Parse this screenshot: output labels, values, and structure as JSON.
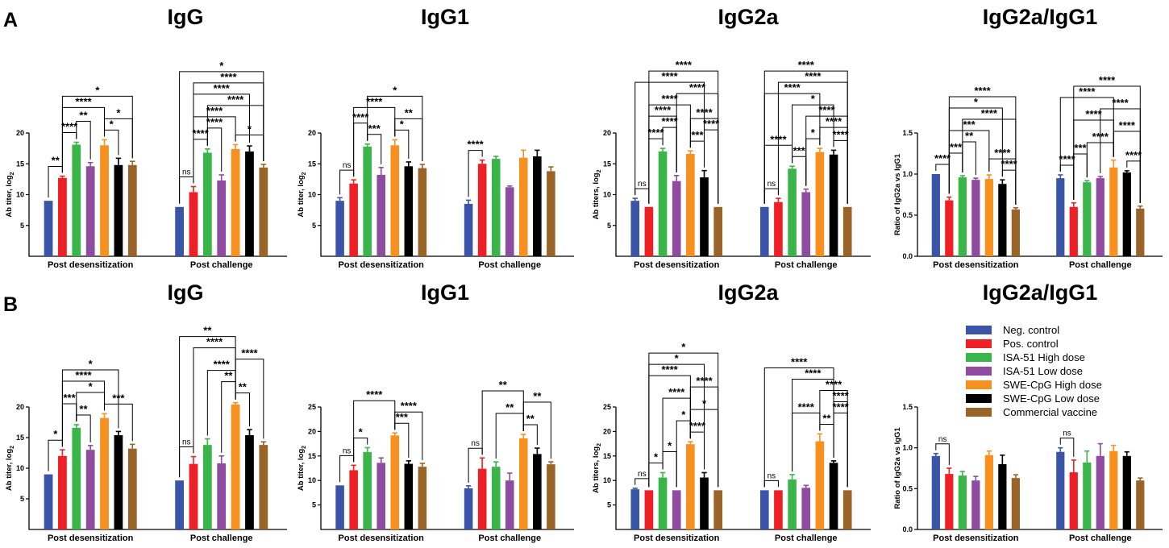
{
  "panels": [
    {
      "label": "A"
    },
    {
      "label": "B"
    }
  ],
  "legend": [
    {
      "name": "Neg. control",
      "color": "#3a55a8"
    },
    {
      "name": "Pos. control",
      "color": "#ee1f25"
    },
    {
      "name": "ISA-51 High dose",
      "color": "#39b54a"
    },
    {
      "name": "ISA-51 Low dose",
      "color": "#8e4b9f"
    },
    {
      "name": "SWE-CpG High dose",
      "color": "#f7901e"
    },
    {
      "name": "SWE-CpG Low dose",
      "color": "#000000"
    },
    {
      "name": "Commercial vaccine",
      "color": "#9a6328"
    }
  ],
  "chart_data": [
    {
      "panel": "A",
      "type": "bar",
      "title": "IgG",
      "ylabel": "Ab titer, log",
      "ylabel_sub": "2",
      "ylim": [
        0,
        20
      ],
      "yticks": [
        5,
        10,
        15,
        20
      ],
      "categories": [
        "Post desensitization",
        "Post challenge"
      ],
      "values": [
        [
          9,
          12.7,
          18.1,
          14.6,
          18,
          14.8,
          14.8
        ],
        [
          8,
          10.4,
          16.8,
          12.3,
          17.4,
          17,
          14.4
        ]
      ],
      "errors": [
        [
          0,
          0.3,
          0.4,
          0.6,
          0.9,
          1.1,
          0.6
        ],
        [
          0,
          0.9,
          0.6,
          0.9,
          0.7,
          0.9,
          0.5
        ]
      ],
      "brackets": [
        {
          "g": 0,
          "a": 0,
          "b": 1,
          "label": "**"
        },
        {
          "g": 0,
          "a": 1,
          "b": 2,
          "label": "****"
        },
        {
          "g": 0,
          "a": 2,
          "b": 3,
          "label": "**"
        },
        {
          "g": 0,
          "a": 1,
          "b": 4,
          "label": "****"
        },
        {
          "g": 0,
          "a": 4,
          "b": 5,
          "label": "*"
        },
        {
          "g": 0,
          "a": 4,
          "b": 6,
          "label": "*"
        },
        {
          "g": 0,
          "a": 1,
          "b": 6,
          "label": "*"
        },
        {
          "g": 1,
          "a": 0,
          "b": 1,
          "label": "ns"
        },
        {
          "g": 1,
          "a": 1,
          "b": 2,
          "label": "****"
        },
        {
          "g": 1,
          "a": 2,
          "b": 3,
          "label": "****"
        },
        {
          "g": 1,
          "a": 1,
          "b": 4,
          "label": "****"
        },
        {
          "g": 1,
          "a": 4,
          "b": 6,
          "label": "*"
        },
        {
          "g": 1,
          "a": 2,
          "b": 6,
          "label": "****"
        },
        {
          "g": 1,
          "a": 1,
          "b": 5,
          "label": "****"
        },
        {
          "g": 1,
          "a": 1,
          "b": 6,
          "label": "****"
        },
        {
          "g": 1,
          "a": 0,
          "b": 6,
          "label": "*"
        }
      ]
    },
    {
      "panel": "A",
      "type": "bar",
      "title": "IgG1",
      "ylabel": "Ab titer, log",
      "ylabel_sub": "2",
      "ylim": [
        0,
        20
      ],
      "yticks": [
        5,
        10,
        15,
        20
      ],
      "categories": [
        "Post desensitization",
        "Post challenge"
      ],
      "values": [
        [
          9,
          11.8,
          17.8,
          13.2,
          18,
          14.6,
          14.3
        ],
        [
          8.5,
          15,
          15.8,
          11.2,
          16,
          16.2,
          13.8
        ]
      ],
      "errors": [
        [
          0.5,
          0.6,
          0.4,
          1.2,
          0.9,
          0.7,
          0.6
        ],
        [
          0.6,
          0.6,
          0.4,
          0.2,
          1.2,
          1,
          0.7
        ]
      ],
      "brackets": [
        {
          "g": 0,
          "a": 0,
          "b": 1,
          "label": "ns"
        },
        {
          "g": 0,
          "a": 2,
          "b": 3,
          "label": "***"
        },
        {
          "g": 0,
          "a": 1,
          "b": 2,
          "label": "****"
        },
        {
          "g": 0,
          "a": 4,
          "b": 5,
          "label": "*"
        },
        {
          "g": 0,
          "a": 4,
          "b": 6,
          "label": "**"
        },
        {
          "g": 0,
          "a": 1,
          "b": 4,
          "label": "****"
        },
        {
          "g": 0,
          "a": 2,
          "b": 6,
          "label": "*"
        },
        {
          "g": 1,
          "a": 0,
          "b": 1,
          "label": "****"
        }
      ]
    },
    {
      "panel": "A",
      "type": "bar",
      "title": "IgG2a",
      "ylabel": "Ab titers, log",
      "ylabel_sub": "2",
      "ylim": [
        0,
        20
      ],
      "yticks": [
        5,
        10,
        15,
        20
      ],
      "categories": [
        "Post desensitization",
        "Post challenge"
      ],
      "values": [
        [
          9,
          8,
          17,
          12.2,
          16.6,
          12.8,
          8
        ],
        [
          8,
          8.8,
          14.2,
          10.4,
          16.9,
          16.5,
          8
        ]
      ],
      "errors": [
        [
          0.4,
          0,
          0.5,
          0.9,
          0.5,
          1.1,
          0
        ],
        [
          0,
          0.6,
          0.4,
          0.5,
          0.6,
          0.7,
          0
        ]
      ],
      "brackets": [
        {
          "g": 0,
          "a": 0,
          "b": 1,
          "label": "ns"
        },
        {
          "g": 0,
          "a": 1,
          "b": 2,
          "label": "****"
        },
        {
          "g": 0,
          "a": 2,
          "b": 3,
          "label": "****"
        },
        {
          "g": 0,
          "a": 4,
          "b": 5,
          "label": "***"
        },
        {
          "g": 0,
          "a": 5,
          "b": 6,
          "label": "****"
        },
        {
          "g": 0,
          "a": 1,
          "b": 3,
          "label": "****"
        },
        {
          "g": 0,
          "a": 4,
          "b": 6,
          "label": "****"
        },
        {
          "g": 0,
          "a": 1,
          "b": 4,
          "label": "****"
        },
        {
          "g": 0,
          "a": 3,
          "b": 6,
          "label": "****"
        },
        {
          "g": 0,
          "a": 0,
          "b": 5,
          "label": "****"
        },
        {
          "g": 0,
          "a": 1,
          "b": 6,
          "label": "****"
        },
        {
          "g": 1,
          "a": 0,
          "b": 1,
          "label": "ns"
        },
        {
          "g": 1,
          "a": 0,
          "b": 2,
          "label": "****"
        },
        {
          "g": 1,
          "a": 2,
          "b": 3,
          "label": "***"
        },
        {
          "g": 1,
          "a": 3,
          "b": 4,
          "label": "*"
        },
        {
          "g": 1,
          "a": 5,
          "b": 6,
          "label": "****"
        },
        {
          "g": 1,
          "a": 3,
          "b": 6,
          "label": "****"
        },
        {
          "g": 1,
          "a": 4,
          "b": 6,
          "label": "****"
        },
        {
          "g": 1,
          "a": 2,
          "b": 5,
          "label": "*"
        },
        {
          "g": 1,
          "a": 0,
          "b": 4,
          "label": "****"
        },
        {
          "g": 1,
          "a": 1,
          "b": 6,
          "label": "****"
        },
        {
          "g": 1,
          "a": 0,
          "b": 6,
          "label": "****"
        }
      ]
    },
    {
      "panel": "A",
      "type": "bar",
      "title": "IgG2a/IgG1",
      "ylabel": "Ratio of IgG2a vs IgG1",
      "ylim": [
        0,
        1.5
      ],
      "yticks": [
        0.0,
        0.5,
        1.0,
        1.5
      ],
      "categories": [
        "Post desensitization",
        "Post challenge"
      ],
      "values": [
        [
          1,
          0.68,
          0.96,
          0.93,
          0.94,
          0.88,
          0.57
        ],
        [
          0.95,
          0.6,
          0.9,
          0.95,
          1.08,
          1.02,
          0.58
        ]
      ],
      "errors": [
        [
          0,
          0.04,
          0.02,
          0.02,
          0.05,
          0.05,
          0.02
        ],
        [
          0.04,
          0.05,
          0.02,
          0.02,
          0.09,
          0.02,
          0.03
        ]
      ],
      "brackets": [
        {
          "g": 0,
          "a": 0,
          "b": 1,
          "label": "****"
        },
        {
          "g": 0,
          "a": 1,
          "b": 2,
          "label": "***"
        },
        {
          "g": 0,
          "a": 2,
          "b": 3,
          "label": "**"
        },
        {
          "g": 0,
          "a": 5,
          "b": 6,
          "label": "****"
        },
        {
          "g": 0,
          "a": 4,
          "b": 6,
          "label": "****"
        },
        {
          "g": 0,
          "a": 2,
          "b": 6,
          "label": "****"
        },
        {
          "g": 0,
          "a": 1,
          "b": 4,
          "label": "***"
        },
        {
          "g": 0,
          "a": 1,
          "b": 5,
          "label": "*"
        },
        {
          "g": 0,
          "a": 1,
          "b": 6,
          "label": "****"
        },
        {
          "g": 1,
          "a": 0,
          "b": 1,
          "label": "****"
        },
        {
          "g": 1,
          "a": 1,
          "b": 2,
          "label": "***"
        },
        {
          "g": 1,
          "a": 2,
          "b": 4,
          "label": "****"
        },
        {
          "g": 1,
          "a": 5,
          "b": 6,
          "label": "****"
        },
        {
          "g": 1,
          "a": 4,
          "b": 6,
          "label": "****"
        },
        {
          "g": 1,
          "a": 1,
          "b": 4,
          "label": "****"
        },
        {
          "g": 1,
          "a": 3,
          "b": 6,
          "label": "****"
        },
        {
          "g": 1,
          "a": 1,
          "b": 6,
          "label": "****"
        },
        {
          "g": 1,
          "a": 0,
          "b": 4,
          "label": "****"
        }
      ]
    },
    {
      "panel": "B",
      "type": "bar",
      "title": "IgG",
      "ylabel": "Ab titer, log",
      "ylabel_sub": "2",
      "ylim": [
        0,
        20
      ],
      "yticks": [
        5,
        10,
        15,
        20
      ],
      "categories": [
        "Post desensitization",
        "Post challenge"
      ],
      "values": [
        [
          9,
          12,
          16.6,
          13,
          18.2,
          15.4,
          13.2
        ],
        [
          8,
          10.7,
          13.8,
          10.8,
          20.4,
          15.4,
          13.8
        ]
      ],
      "errors": [
        [
          0,
          1,
          0.5,
          0.7,
          0.7,
          0.6,
          0.7
        ],
        [
          0,
          1.2,
          1,
          1.2,
          0.3,
          0.9,
          0.5
        ]
      ],
      "brackets": [
        {
          "g": 0,
          "a": 0,
          "b": 1,
          "label": "*"
        },
        {
          "g": 0,
          "a": 2,
          "b": 3,
          "label": "**"
        },
        {
          "g": 0,
          "a": 4,
          "b": 6,
          "label": "***"
        },
        {
          "g": 0,
          "a": 1,
          "b": 2,
          "label": "***"
        },
        {
          "g": 0,
          "a": 2,
          "b": 4,
          "label": "*"
        },
        {
          "g": 0,
          "a": 1,
          "b": 4,
          "label": "****"
        },
        {
          "g": 0,
          "a": 1,
          "b": 5,
          "label": "*"
        },
        {
          "g": 1,
          "a": 0,
          "b": 1,
          "label": "ns"
        },
        {
          "g": 1,
          "a": 4,
          "b": 5,
          "label": "**"
        },
        {
          "g": 1,
          "a": 1,
          "b": 4,
          "label": "****"
        },
        {
          "g": 1,
          "a": 2,
          "b": 4,
          "label": "****"
        },
        {
          "g": 1,
          "a": 4,
          "b": 6,
          "label": "****"
        },
        {
          "g": 1,
          "a": 3,
          "b": 4,
          "label": "**"
        },
        {
          "g": 1,
          "a": 0,
          "b": 4,
          "label": "**"
        }
      ]
    },
    {
      "panel": "B",
      "type": "bar",
      "title": "IgG1",
      "ylabel": "Ab titer, log",
      "ylabel_sub": "2",
      "ylim": [
        0,
        25
      ],
      "yticks": [
        5,
        10,
        15,
        20,
        25
      ],
      "categories": [
        "Post desensitization",
        "Post challenge"
      ],
      "values": [
        [
          9,
          12.1,
          15.8,
          13.6,
          19.2,
          13.4,
          12.8
        ],
        [
          8.4,
          12.4,
          12.8,
          10,
          18.6,
          15.4,
          13.3
        ]
      ],
      "errors": [
        [
          0,
          1,
          0.9,
          1,
          0.5,
          0.6,
          0.7
        ],
        [
          0.5,
          2.2,
          1,
          1.5,
          0.8,
          1.2,
          0.5
        ]
      ],
      "brackets": [
        {
          "g": 0,
          "a": 0,
          "b": 1,
          "label": "ns"
        },
        {
          "g": 0,
          "a": 1,
          "b": 2,
          "label": "*"
        },
        {
          "g": 0,
          "a": 4,
          "b": 5,
          "label": "***"
        },
        {
          "g": 0,
          "a": 1,
          "b": 4,
          "label": "****"
        },
        {
          "g": 0,
          "a": 4,
          "b": 6,
          "label": "****"
        },
        {
          "g": 1,
          "a": 0,
          "b": 1,
          "label": "ns"
        },
        {
          "g": 1,
          "a": 2,
          "b": 4,
          "label": "**"
        },
        {
          "g": 1,
          "a": 4,
          "b": 6,
          "label": "**"
        },
        {
          "g": 1,
          "a": 4,
          "b": 5,
          "label": "**"
        },
        {
          "g": 1,
          "a": 1,
          "b": 4,
          "label": "**"
        }
      ]
    },
    {
      "panel": "B",
      "type": "bar",
      "title": "IgG2a",
      "ylabel": "Ab titers, log",
      "ylabel_sub": "2",
      "ylim": [
        0,
        25
      ],
      "yticks": [
        5,
        10,
        15,
        20,
        25
      ],
      "categories": [
        "Post desensitization",
        "Post challenge"
      ],
      "values": [
        [
          8.2,
          8,
          10.6,
          8,
          17.4,
          10.6,
          8
        ],
        [
          8,
          8,
          10.2,
          8.5,
          18,
          13.6,
          8
        ]
      ],
      "errors": [
        [
          0.2,
          0,
          1,
          0,
          0.5,
          1,
          0
        ],
        [
          0,
          0,
          1,
          0.5,
          1.5,
          0.4,
          0
        ]
      ],
      "brackets": [
        {
          "g": 0,
          "a": 0,
          "b": 1,
          "label": "ns"
        },
        {
          "g": 0,
          "a": 1,
          "b": 2,
          "label": "*"
        },
        {
          "g": 0,
          "a": 2,
          "b": 3,
          "label": "*"
        },
        {
          "g": 0,
          "a": 4,
          "b": 5,
          "label": "****"
        },
        {
          "g": 0,
          "a": 4,
          "b": 6,
          "label": "*"
        },
        {
          "g": 0,
          "a": 3,
          "b": 4,
          "label": "*"
        },
        {
          "g": 0,
          "a": 2,
          "b": 4,
          "label": "****"
        },
        {
          "g": 0,
          "a": 4,
          "b": 6,
          "label": "****"
        },
        {
          "g": 0,
          "a": 1,
          "b": 4,
          "label": "****"
        },
        {
          "g": 0,
          "a": 1,
          "b": 5,
          "label": "*"
        },
        {
          "g": 0,
          "a": 1,
          "b": 6,
          "label": "*"
        },
        {
          "g": 1,
          "a": 0,
          "b": 1,
          "label": "ns"
        },
        {
          "g": 1,
          "a": 2,
          "b": 4,
          "label": "****"
        },
        {
          "g": 1,
          "a": 4,
          "b": 5,
          "label": "**"
        },
        {
          "g": 1,
          "a": 5,
          "b": 6,
          "label": "****"
        },
        {
          "g": 1,
          "a": 2,
          "b": 5,
          "label": "****"
        },
        {
          "g": 1,
          "a": 4,
          "b": 6,
          "label": "****"
        },
        {
          "g": 1,
          "a": 5,
          "b": 6,
          "label": "****"
        },
        {
          "g": 1,
          "a": 0,
          "b": 5,
          "label": "****"
        }
      ]
    },
    {
      "panel": "B",
      "type": "bar",
      "title": "IgG2a/IgG1",
      "ylabel": "Ratio of IgG2a vs IgG1",
      "ylim": [
        0,
        1.5
      ],
      "yticks": [
        0.0,
        0.5,
        1.0,
        1.5
      ],
      "categories": [
        "Post desensitization",
        "Post challenge"
      ],
      "values": [
        [
          0.9,
          0.68,
          0.66,
          0.6,
          0.91,
          0.8,
          0.63
        ],
        [
          0.95,
          0.7,
          0.82,
          0.9,
          0.96,
          0.9,
          0.6
        ]
      ],
      "errors": [
        [
          0.03,
          0.07,
          0.05,
          0.05,
          0.05,
          0.11,
          0.04
        ],
        [
          0.05,
          0.15,
          0.14,
          0.15,
          0.07,
          0.05,
          0.03
        ]
      ],
      "brackets": [
        {
          "g": 0,
          "a": 0,
          "b": 1,
          "label": "ns"
        },
        {
          "g": 1,
          "a": 0,
          "b": 1,
          "label": "ns"
        }
      ]
    }
  ]
}
